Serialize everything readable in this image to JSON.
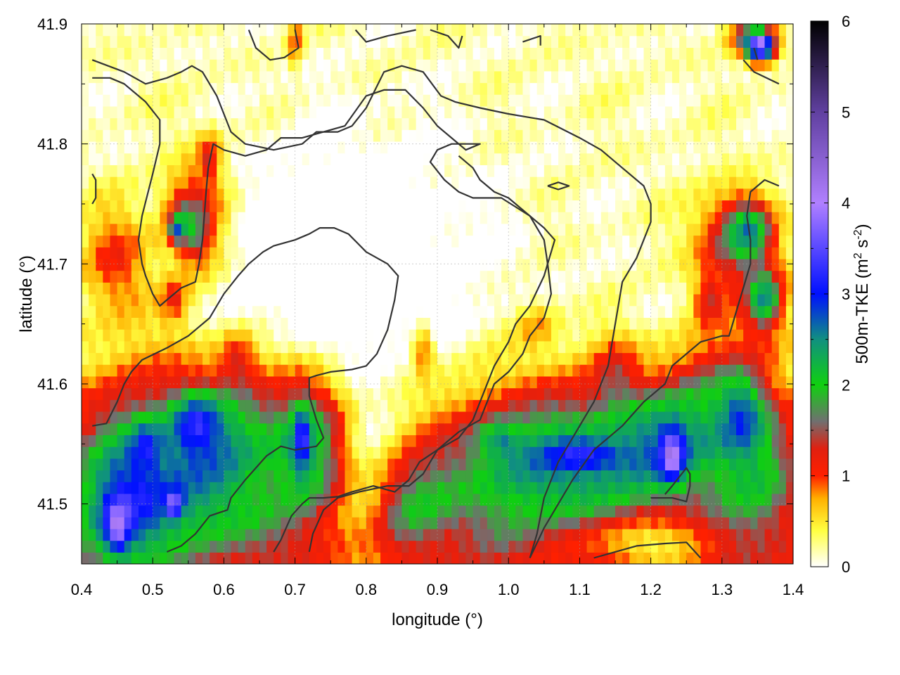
{
  "chart_data": {
    "type": "heatmap",
    "title": "",
    "xlabel": "longitude (°)",
    "ylabel": "latitude (°)",
    "xlim": [
      0.4,
      1.4
    ],
    "ylim": [
      41.45,
      41.9
    ],
    "x_ticks": [
      "0.4",
      "0.5",
      "0.6",
      "0.7",
      "0.8",
      "0.9",
      "1.0",
      "1.1",
      "1.2",
      "1.3",
      "1.4"
    ],
    "y_ticks": [
      "41.5",
      "41.6",
      "41.7",
      "41.8",
      "41.9"
    ],
    "grid": true,
    "colorbar": {
      "label_prefix": "500m-TKE (m",
      "sup1": "2",
      "mid": " s",
      "sup2": "-2",
      "suffix": ")",
      "range": [
        0,
        6
      ],
      "ticks": [
        "0",
        "1",
        "2",
        "3",
        "4",
        "5",
        "6"
      ],
      "colors": [
        {
          "v": 0.0,
          "c": "#ffffff"
        },
        {
          "v": 0.4,
          "c": "#ffff40"
        },
        {
          "v": 0.75,
          "c": "#ffb000"
        },
        {
          "v": 1.0,
          "c": "#ff2000"
        },
        {
          "v": 1.3,
          "c": "#e02010"
        },
        {
          "v": 1.6,
          "c": "#707070"
        },
        {
          "v": 2.0,
          "c": "#10d010"
        },
        {
          "v": 2.5,
          "c": "#109080"
        },
        {
          "v": 3.0,
          "c": "#0010ff"
        },
        {
          "v": 4.0,
          "c": "#b080ff"
        },
        {
          "v": 5.0,
          "c": "#6040a0"
        },
        {
          "v": 6.0,
          "c": "#000000"
        }
      ]
    },
    "contour_color": "#333333"
  }
}
